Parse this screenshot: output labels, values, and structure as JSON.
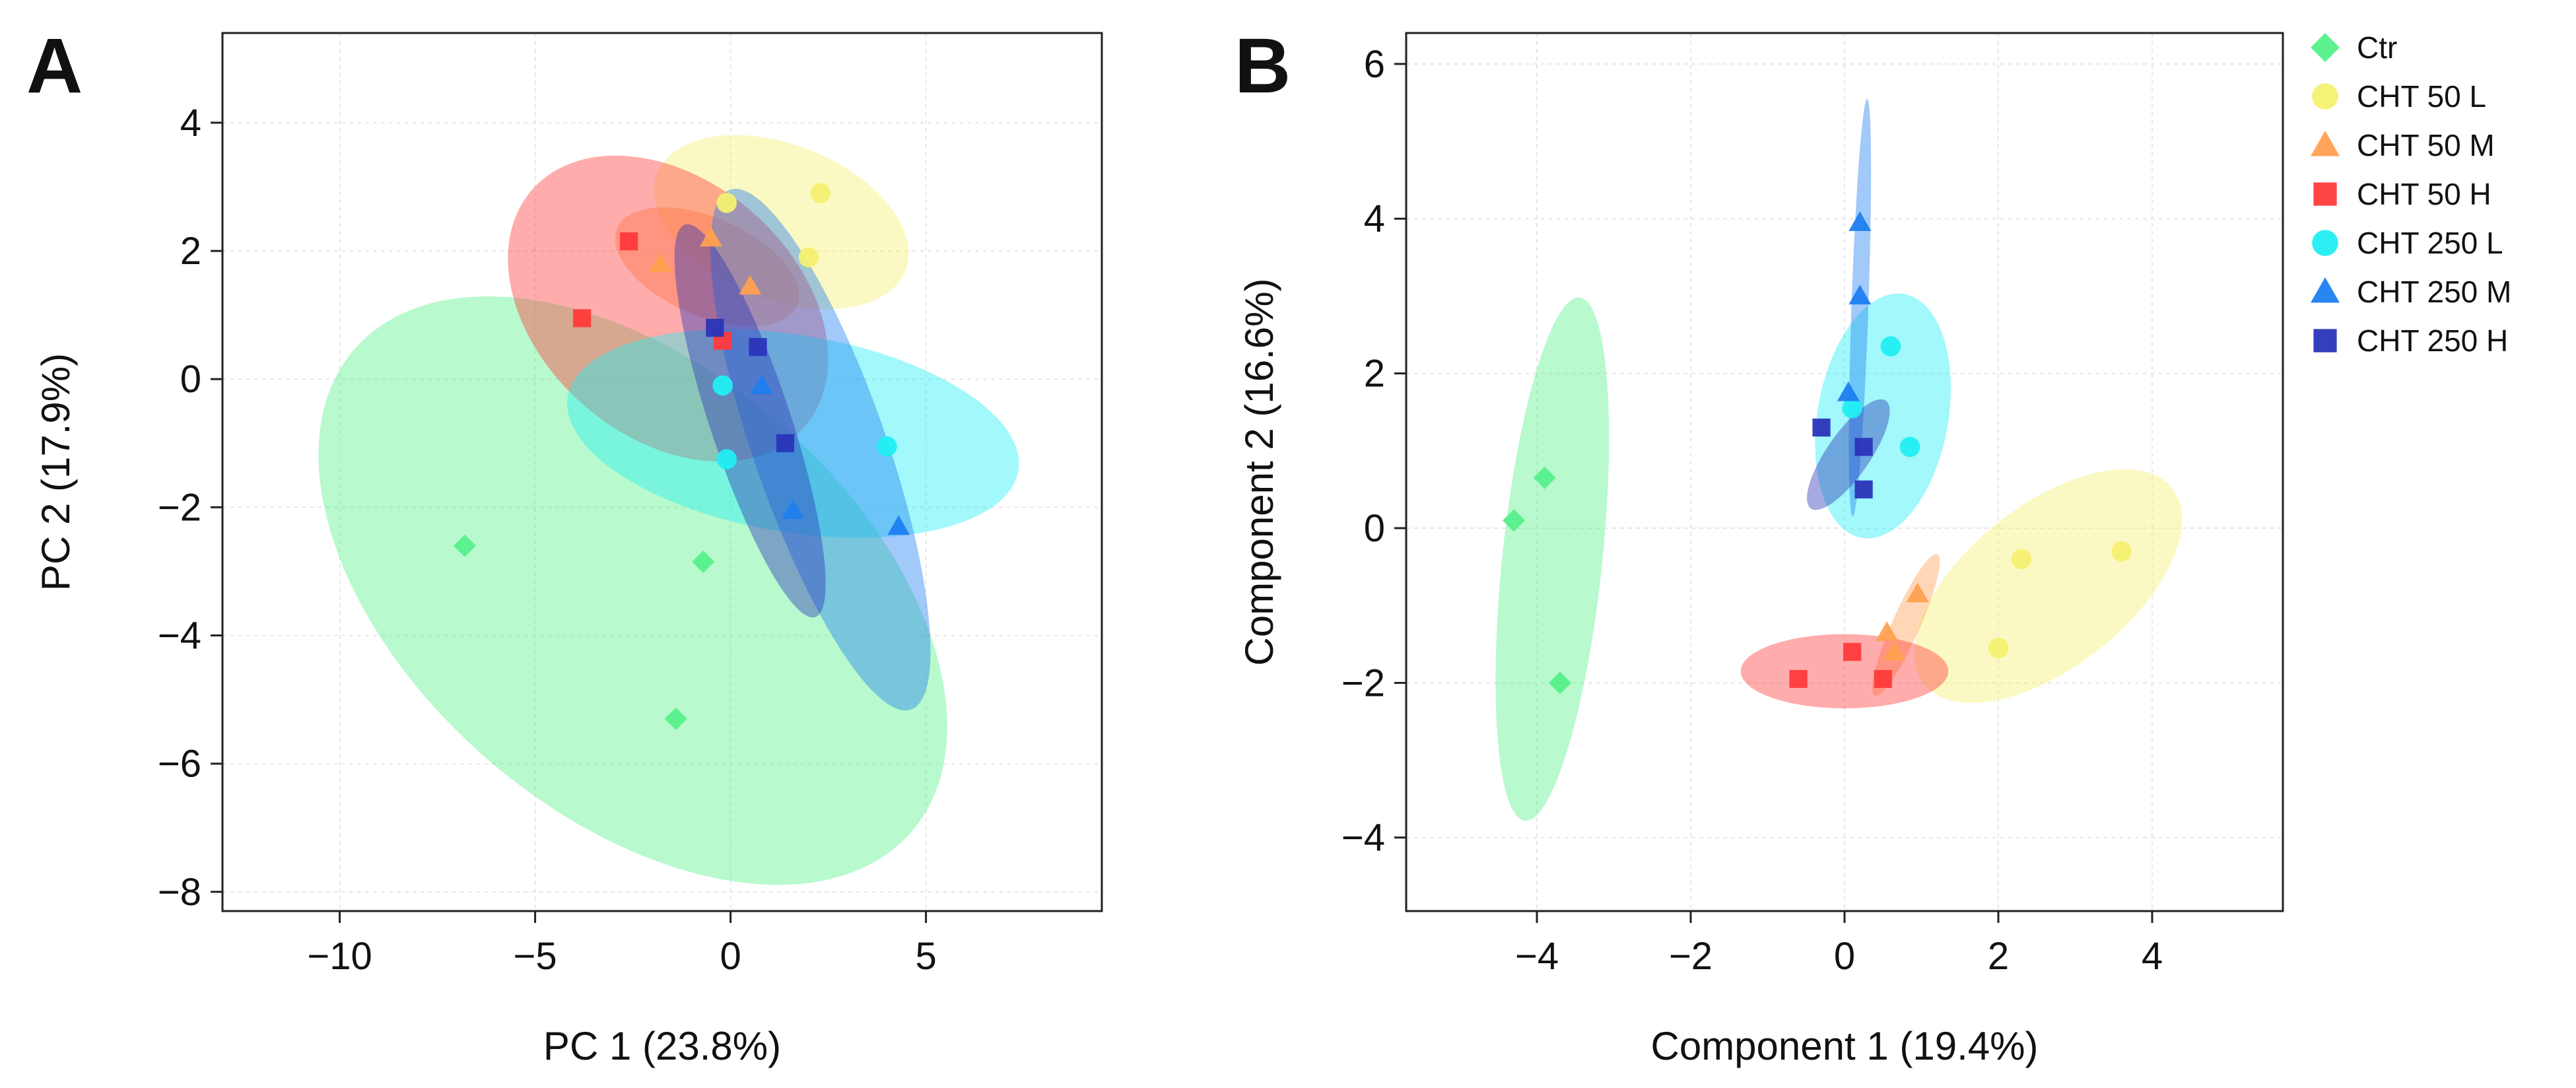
{
  "legend": [
    {
      "label": "Ctr",
      "color": "#55f08a",
      "marker": "diamond"
    },
    {
      "label": "CHT 50 L",
      "color": "#f5f070",
      "marker": "circle"
    },
    {
      "label": "CHT 50 M",
      "color": "#ffa050",
      "marker": "triangle"
    },
    {
      "label": "CHT 50 H",
      "color": "#ff3a3a",
      "marker": "square"
    },
    {
      "label": "CHT 250 L",
      "color": "#22eef2",
      "marker": "circle"
    },
    {
      "label": "CHT 250 M",
      "color": "#1e7ef0",
      "marker": "triangle"
    },
    {
      "label": "CHT 250 H",
      "color": "#2a34b8",
      "marker": "square"
    }
  ],
  "chart_data": [
    {
      "type": "scatter",
      "panel": "A",
      "xlabel": "PC 1 (23.8%)",
      "ylabel": "PC 2 (17.9%)",
      "xlim": [
        -13,
        9.5
      ],
      "ylim": [
        -8.3,
        5.4
      ],
      "xticks": [
        -10,
        -5,
        0,
        5
      ],
      "yticks": [
        -8,
        -6,
        -4,
        -2,
        0,
        2,
        4
      ],
      "grid": true,
      "series": [
        {
          "name": "Ctr",
          "color": "#55f08a",
          "marker": "diamond",
          "points": [
            [
              -6.8,
              -2.6
            ],
            [
              -0.7,
              -2.85
            ],
            [
              -1.4,
              -5.3
            ]
          ],
          "ellipse": {
            "cx": -2.5,
            "cy": -3.3,
            "rx": 8.4,
            "ry": 3.9,
            "angle": -19
          }
        },
        {
          "name": "CHT 50 L",
          "color": "#f5f070",
          "marker": "circle",
          "points": [
            [
              -0.1,
              2.75
            ],
            [
              2.3,
              2.9
            ],
            [
              2.0,
              1.9
            ]
          ],
          "ellipse": {
            "cx": 1.3,
            "cy": 2.45,
            "rx": 3.3,
            "ry": 1.25,
            "angle": -10
          }
        },
        {
          "name": "CHT 50 M",
          "color": "#ffa050",
          "marker": "triangle",
          "points": [
            [
              -0.5,
              2.2
            ],
            [
              -1.8,
              1.8
            ],
            [
              0.5,
              1.45
            ]
          ],
          "ellipse": {
            "cx": -0.6,
            "cy": 1.75,
            "rx": 2.4,
            "ry": 0.8,
            "angle": -12
          }
        },
        {
          "name": "CHT 50 H",
          "color": "#ff3a3a",
          "marker": "square",
          "points": [
            [
              -2.6,
              2.15
            ],
            [
              -3.8,
              0.95
            ],
            [
              -0.2,
              0.6
            ]
          ],
          "ellipse": {
            "cx": -1.6,
            "cy": 1.1,
            "rx": 4.2,
            "ry": 2.2,
            "angle": -15
          }
        },
        {
          "name": "CHT 250 L",
          "color": "#22eef2",
          "marker": "circle",
          "points": [
            [
              -0.2,
              -0.1
            ],
            [
              -0.1,
              -1.25
            ],
            [
              4.0,
              -1.05
            ]
          ],
          "ellipse": {
            "cx": 1.6,
            "cy": -0.85,
            "rx": 5.8,
            "ry": 1.55,
            "angle": -5
          }
        },
        {
          "name": "CHT 250 M",
          "color": "#1e7ef0",
          "marker": "triangle",
          "points": [
            [
              0.8,
              -0.1
            ],
            [
              1.6,
              -2.05
            ],
            [
              4.3,
              -2.3
            ]
          ],
          "ellipse": {
            "cx": 2.3,
            "cy": -1.1,
            "rx": 4.7,
            "ry": 1.55,
            "angle": -58
          }
        },
        {
          "name": "CHT 250 H",
          "color": "#2a34b8",
          "marker": "square",
          "points": [
            [
              -0.4,
              0.8
            ],
            [
              0.7,
              0.5
            ],
            [
              1.4,
              -1.0
            ]
          ],
          "ellipse": {
            "cx": 0.5,
            "cy": -0.65,
            "rx": 3.5,
            "ry": 0.95,
            "angle": -60
          }
        }
      ]
    },
    {
      "type": "scatter",
      "panel": "B",
      "xlabel": "Component 1 (19.4%)",
      "ylabel": "Component 2 (16.6%)",
      "xlim": [
        -5.7,
        5.7
      ],
      "ylim": [
        -4.95,
        6.4
      ],
      "xticks": [
        -4,
        -2,
        0,
        2,
        4
      ],
      "yticks": [
        -4,
        -2,
        0,
        2,
        4,
        6
      ],
      "grid": true,
      "series": [
        {
          "name": "Ctr",
          "color": "#55f08a",
          "marker": "diamond",
          "points": [
            [
              -3.9,
              0.65
            ],
            [
              -4.3,
              0.1
            ],
            [
              -3.7,
              -2.0
            ]
          ],
          "ellipse": {
            "cx": -3.8,
            "cy": -0.4,
            "rx": 3.4,
            "ry": 0.65,
            "angle": 84
          }
        },
        {
          "name": "CHT 50 L",
          "color": "#f5f070",
          "marker": "circle",
          "points": [
            [
              2.3,
              -0.4
            ],
            [
              3.6,
              -0.3
            ],
            [
              2.0,
              -1.55
            ]
          ],
          "ellipse": {
            "cx": 2.65,
            "cy": -0.75,
            "rx": 2.05,
            "ry": 1.05,
            "angle": 38
          }
        },
        {
          "name": "CHT 50 M",
          "color": "#ffa050",
          "marker": "triangle",
          "points": [
            [
              0.95,
              -0.85
            ],
            [
              0.55,
              -1.35
            ],
            [
              0.65,
              -1.6
            ]
          ],
          "ellipse": {
            "cx": 0.8,
            "cy": -1.25,
            "rx": 1.0,
            "ry": 0.18,
            "angle": 66
          }
        },
        {
          "name": "CHT 50 H",
          "color": "#ff3a3a",
          "marker": "square",
          "points": [
            [
              -0.6,
              -1.95
            ],
            [
              0.1,
              -1.6
            ],
            [
              0.5,
              -1.95
            ]
          ],
          "ellipse": {
            "cx": 0.0,
            "cy": -1.85,
            "rx": 1.35,
            "ry": 0.48,
            "angle": 0
          }
        },
        {
          "name": "CHT 250 L",
          "color": "#22eef2",
          "marker": "circle",
          "points": [
            [
              0.6,
              2.35
            ],
            [
              0.1,
              1.55
            ],
            [
              0.85,
              1.05
            ]
          ],
          "ellipse": {
            "cx": 0.5,
            "cy": 1.45,
            "rx": 1.6,
            "ry": 0.85,
            "angle": 80
          }
        },
        {
          "name": "CHT 250 M",
          "color": "#1e7ef0",
          "marker": "triangle",
          "points": [
            [
              0.2,
              3.95
            ],
            [
              0.2,
              3.0
            ],
            [
              0.05,
              1.75
            ]
          ],
          "ellipse": {
            "cx": 0.2,
            "cy": 2.85,
            "rx": 2.7,
            "ry": 0.11,
            "angle": 88
          }
        },
        {
          "name": "CHT 250 H",
          "color": "#2a34b8",
          "marker": "square",
          "points": [
            [
              -0.3,
              1.3
            ],
            [
              0.25,
              1.05
            ],
            [
              0.25,
              0.5
            ]
          ],
          "ellipse": {
            "cx": 0.05,
            "cy": 0.95,
            "rx": 0.85,
            "ry": 0.28,
            "angle": 55
          }
        }
      ]
    }
  ]
}
